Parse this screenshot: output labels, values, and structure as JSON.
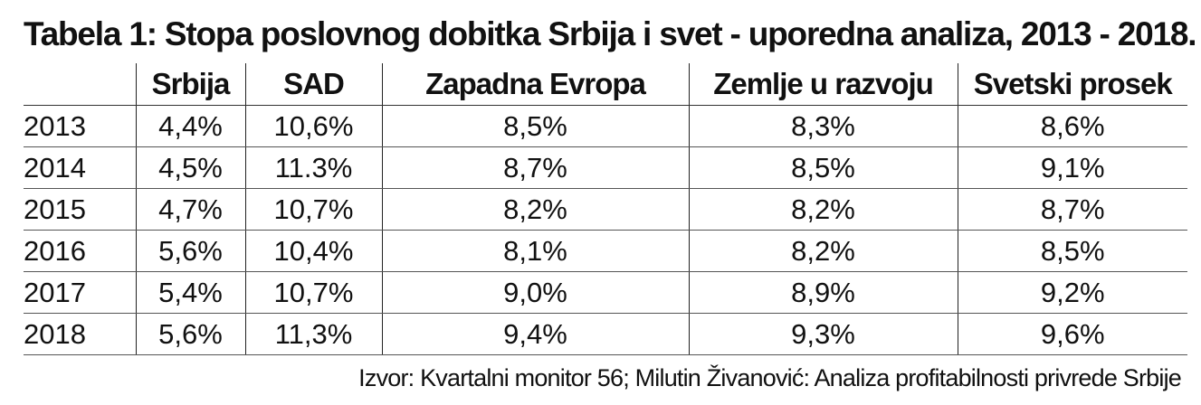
{
  "title": "Tabela 1: Stopa poslovnog dobitka Srbija i svet - uporedna analiza, 2013 - 2018.",
  "table": {
    "headers": [
      "",
      "Srbija",
      "SAD",
      "Zapadna Evropa",
      "Zemlje u razvoju",
      "Svetski prosek"
    ],
    "rows": [
      [
        "2013",
        "4,4%",
        "10,6%",
        "8,5%",
        "8,3%",
        "8,6%"
      ],
      [
        "2014",
        "4,5%",
        "11.3%",
        "8,7%",
        "8,5%",
        "9,1%"
      ],
      [
        "2015",
        "4,7%",
        "10,7%",
        "8,2%",
        "8,2%",
        "8,7%"
      ],
      [
        "2016",
        "5,6%",
        "10,4%",
        "8,1%",
        "8,2%",
        "8,5%"
      ],
      [
        "2017",
        "5,4%",
        "10,7%",
        "9,0%",
        "8,9%",
        "9,2%"
      ],
      [
        "2018",
        "5,6%",
        "11,3%",
        "9,4%",
        "9,3%",
        "9,6%"
      ]
    ]
  },
  "source": "Izvor: Kvartalni monitor 56; Milutin Živanović: Analiza profitabilnosti privrede Srbije"
}
